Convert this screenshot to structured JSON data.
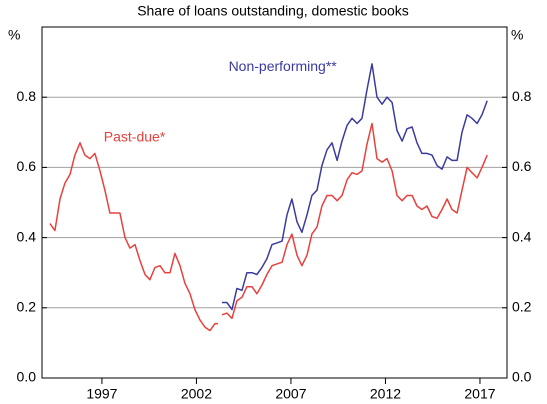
{
  "chart_data": {
    "type": "line",
    "subtitle": "Share of loans outstanding, domestic books",
    "y_label": "%",
    "y2_label": "%",
    "xlim": [
      1993.83,
      2018.43
    ],
    "xticks": [
      1997,
      2002,
      2007,
      2012,
      2017
    ],
    "ylim": [
      0,
      1.0
    ],
    "yticks": [
      {
        "value": 0,
        "label": "0.0"
      },
      0.2,
      0.4,
      0.6,
      0.8
    ],
    "y2lim": [
      0,
      1.0
    ],
    "y2ticks": [
      {
        "value": 0,
        "label": "0.0"
      },
      0.2,
      0.4,
      0.6,
      0.8
    ],
    "grid": true,
    "annotations": [
      {
        "text": "Non-performing**",
        "x": 2003.7,
        "y": 0.885,
        "color": "#3b3b9f"
      },
      {
        "text": "Past-due*",
        "x": 1997.1,
        "y": 0.685,
        "color": "#e8413e"
      }
    ],
    "series": [
      {
        "name": "Past-due*",
        "color": "#e8413e",
        "x": [
          1994.25,
          1994.51,
          1994.78,
          1995.04,
          1995.31,
          1995.57,
          1995.84,
          1996.1,
          1996.37,
          1996.63,
          1996.9,
          1997.16,
          1997.42,
          1997.69,
          1997.95,
          1998.22,
          1998.48,
          1998.75,
          1999.01,
          1999.28,
          1999.54,
          1999.81,
          2000.07,
          2000.33,
          2000.6,
          2000.86,
          2001.13,
          2001.39,
          2001.66,
          2001.92,
          2002.19,
          2002.45,
          2002.72,
          2002.98,
          2003.14,
          2003.25,
          2003.35,
          2003.61,
          2003.88,
          2004.14,
          2004.41,
          2004.67,
          2004.94,
          2005.2,
          2005.47,
          2005.73,
          2006.0,
          2006.26,
          2006.53,
          2006.79,
          2007.05,
          2007.32,
          2007.58,
          2007.85,
          2008.11,
          2008.38,
          2008.64,
          2008.91,
          2009.17,
          2009.44,
          2009.7,
          2009.97,
          2010.23,
          2010.5,
          2010.76,
          2011.02,
          2011.29,
          2011.55,
          2011.82,
          2012.08,
          2012.35,
          2012.61,
          2012.88,
          2013.14,
          2013.41,
          2013.67,
          2013.93,
          2014.2,
          2014.46,
          2014.73,
          2014.99,
          2015.26,
          2015.52,
          2015.79,
          2016.05,
          2016.32,
          2016.58,
          2016.85,
          2017.11,
          2017.38
        ],
        "values": [
          0.44,
          0.42,
          0.51,
          0.555,
          0.58,
          0.635,
          0.67,
          0.635,
          0.625,
          0.64,
          0.59,
          0.535,
          0.47,
          0.47,
          0.47,
          0.4,
          0.37,
          0.38,
          0.335,
          0.295,
          0.28,
          0.315,
          0.32,
          0.3,
          0.3,
          0.355,
          0.32,
          0.27,
          0.24,
          0.195,
          0.165,
          0.145,
          0.135,
          0.155,
          0.155,
          null,
          0.18,
          0.185,
          0.17,
          0.22,
          0.23,
          0.26,
          0.26,
          0.24,
          0.265,
          0.295,
          0.32,
          0.325,
          0.33,
          0.38,
          0.41,
          0.35,
          0.32,
          0.35,
          0.41,
          0.43,
          0.49,
          0.52,
          0.52,
          0.505,
          0.52,
          0.565,
          0.585,
          0.58,
          0.59,
          0.665,
          0.725,
          0.625,
          0.615,
          0.625,
          0.59,
          0.52,
          0.505,
          0.52,
          0.52,
          0.49,
          0.48,
          0.49,
          0.46,
          0.455,
          0.48,
          0.51,
          0.48,
          0.47,
          0.535,
          0.6,
          0.585,
          0.57,
          0.6,
          0.635
        ]
      },
      {
        "name": "Non-performing**",
        "color": "#3b3b9f",
        "x": [
          2003.35,
          2003.61,
          2003.88,
          2004.14,
          2004.41,
          2004.67,
          2004.94,
          2005.2,
          2005.47,
          2005.73,
          2006.0,
          2006.26,
          2006.53,
          2006.79,
          2007.05,
          2007.32,
          2007.58,
          2007.85,
          2008.11,
          2008.38,
          2008.64,
          2008.91,
          2009.17,
          2009.44,
          2009.7,
          2009.97,
          2010.23,
          2010.5,
          2010.76,
          2011.02,
          2011.29,
          2011.55,
          2011.82,
          2012.08,
          2012.35,
          2012.61,
          2012.88,
          2013.14,
          2013.41,
          2013.67,
          2013.93,
          2014.2,
          2014.46,
          2014.73,
          2014.99,
          2015.26,
          2015.52,
          2015.79,
          2016.05,
          2016.32,
          2016.58,
          2016.85,
          2017.11,
          2017.38
        ],
        "values": [
          0.215,
          0.215,
          0.195,
          0.255,
          0.25,
          0.3,
          0.3,
          0.295,
          0.315,
          0.34,
          0.38,
          0.385,
          0.39,
          0.465,
          0.51,
          0.445,
          0.415,
          0.465,
          0.52,
          0.535,
          0.605,
          0.65,
          0.67,
          0.62,
          0.675,
          0.72,
          0.74,
          0.725,
          0.74,
          0.82,
          0.895,
          0.8,
          0.78,
          0.8,
          0.785,
          0.705,
          0.675,
          0.71,
          0.715,
          0.67,
          0.64,
          0.64,
          0.635,
          0.605,
          0.595,
          0.63,
          0.62,
          0.62,
          0.7,
          0.75,
          0.74,
          0.725,
          0.75,
          0.79
        ]
      }
    ]
  }
}
